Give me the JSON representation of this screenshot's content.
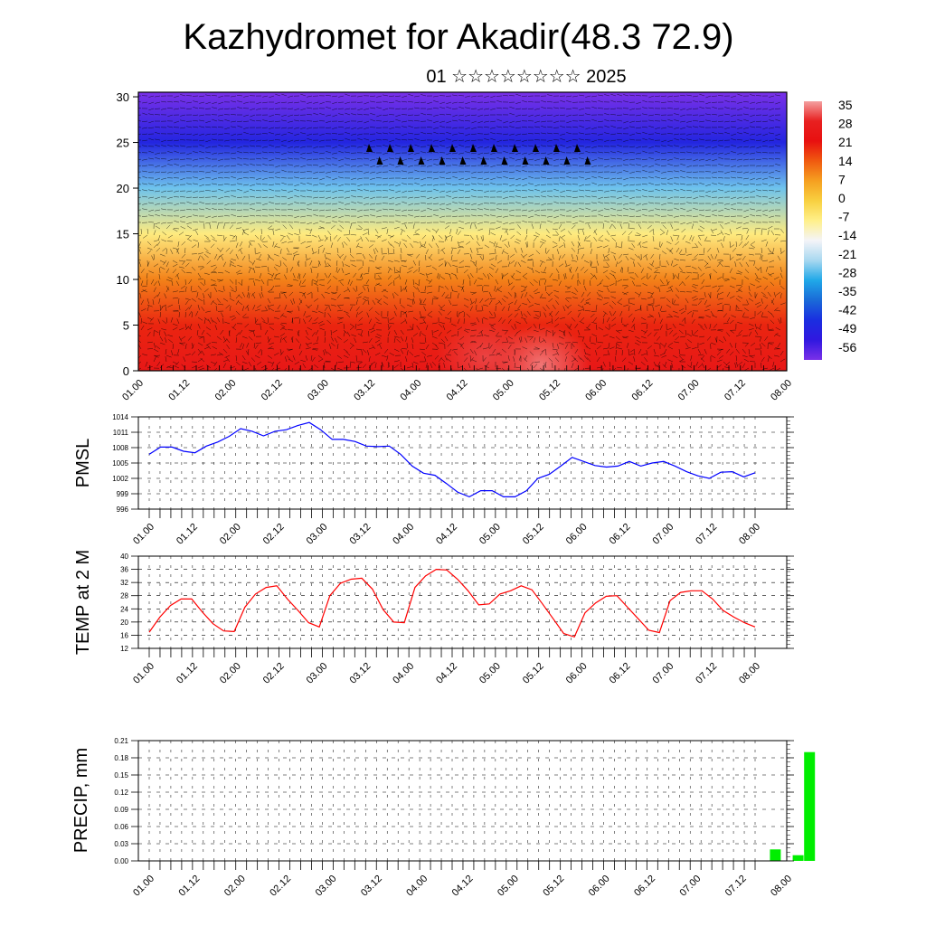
{
  "title": "Kazhydromet for Akadir(48.3 72.9)",
  "subtitle": "01 ☆☆☆☆☆☆☆☆ 2025",
  "colors": {
    "pmsl_line": "#0000ff",
    "temp_line": "#ff0000",
    "precip_bar": "#00ee00",
    "frame": "#000000",
    "wind_barb": "#000000"
  },
  "chart_data": [
    {
      "type": "heatmap",
      "name": "temperature-wind-cross-section",
      "x_tick_labels": [
        "01.00",
        "01.12",
        "02.00",
        "02.12",
        "03.00",
        "03.12",
        "04.00",
        "04.12",
        "05.00",
        "05.12",
        "06.00",
        "06.12",
        "07.00",
        "07.12",
        "08.00"
      ],
      "y_ticks": [
        0,
        5,
        10,
        15,
        20,
        25,
        30
      ],
      "ylim": [
        0,
        30.5
      ],
      "colorbar": {
        "labels": [
          "35",
          "28",
          "21",
          "14",
          "7",
          "0",
          "-7",
          "-14",
          "-21",
          "-28",
          "-35",
          "-42",
          "-49",
          "-56"
        ],
        "stops": [
          {
            "value": 35,
            "color": "#f4a0a0"
          },
          {
            "value": 28,
            "color": "#e82020"
          },
          {
            "value": 21,
            "color": "#e81010"
          },
          {
            "value": 14,
            "color": "#f05a10"
          },
          {
            "value": 7,
            "color": "#f6a020"
          },
          {
            "value": 0,
            "color": "#f8d040"
          },
          {
            "value": -7,
            "color": "#fff08a"
          },
          {
            "value": -14,
            "color": "#f4f4f8"
          },
          {
            "value": -21,
            "color": "#a8d8f0"
          },
          {
            "value": -28,
            "color": "#20a8e8"
          },
          {
            "value": -35,
            "color": "#1a6ad8"
          },
          {
            "value": -42,
            "color": "#1a2ee0"
          },
          {
            "value": -49,
            "color": "#3018e0"
          },
          {
            "value": -56,
            "color": "#7a30e8"
          }
        ]
      },
      "profile": [
        {
          "height": 0,
          "value": 24
        },
        {
          "height": 5,
          "value": 19
        },
        {
          "height": 10,
          "value": 10
        },
        {
          "height": 15,
          "value": -6
        },
        {
          "height": 20,
          "value": -24
        },
        {
          "height": 25,
          "value": -45
        },
        {
          "height": 30.5,
          "value": -56
        }
      ],
      "warm_cores": [
        {
          "x": 4.35,
          "height": 0.6,
          "value": 33
        },
        {
          "x": 3.75,
          "height": 1.5,
          "value": 30
        }
      ]
    },
    {
      "type": "line",
      "name": "pmsl",
      "ylabel": "PMSL",
      "y_ticks": [
        996,
        999,
        1002,
        1005,
        1008,
        1011,
        1014
      ],
      "ylim": [
        996,
        1014
      ],
      "x_tick_labels": [
        "01.00",
        "01.12",
        "02.00",
        "02.12",
        "03.00",
        "03.12",
        "04.00",
        "04.12",
        "05.00",
        "05.12",
        "06.00",
        "06.12",
        "07.00",
        "07.12",
        "08.00"
      ],
      "x_step_hours": 3,
      "series": [
        {
          "values": [
            1006.7,
            1008.1,
            1008.1,
            1007.3,
            1007.0,
            1008.3,
            1009.1,
            1010.2,
            1011.7,
            1011.2,
            1010.3,
            1011.2,
            1011.5,
            1012.3,
            1012.9,
            1011.5,
            1009.6,
            1009.6,
            1009.2,
            1008.3,
            1008.2,
            1008.3,
            1006.7,
            1004.4,
            1003.0,
            1002.6,
            1001.0,
            999.3,
            998.4,
            999.6,
            999.6,
            998.4,
            998.4,
            999.6,
            1002.0,
            1002.8,
            1004.4,
            1006.1,
            1005.3,
            1004.5,
            1004.2,
            1004.4,
            1005.3,
            1004.4,
            1005.0,
            1005.3,
            1004.4,
            1003.3,
            1002.5,
            1002.0,
            1003.2,
            1003.3,
            1002.3,
            1003.1
          ]
        }
      ]
    },
    {
      "type": "line",
      "name": "temp-2m",
      "ylabel": "TEMP at 2 M",
      "y_ticks": [
        12,
        16,
        20,
        24,
        28,
        32,
        36,
        40
      ],
      "ylim": [
        12,
        40
      ],
      "x_tick_labels": [
        "01.00",
        "01.12",
        "02.00",
        "02.12",
        "03.00",
        "03.12",
        "04.00",
        "04.12",
        "05.00",
        "05.12",
        "06.00",
        "06.12",
        "07.00",
        "07.12",
        "08.00"
      ],
      "x_step_hours": 3,
      "series": [
        {
          "values": [
            16.9,
            21.5,
            25.0,
            27.0,
            27.0,
            23.0,
            19.5,
            17.3,
            17.1,
            24.5,
            28.5,
            30.5,
            31.0,
            27.0,
            23.5,
            19.8,
            18.5,
            28.0,
            31.8,
            33.0,
            33.3,
            30.0,
            23.8,
            20.0,
            19.8,
            30.5,
            34.0,
            36.0,
            35.8,
            33.0,
            29.5,
            25.2,
            25.5,
            28.5,
            29.5,
            31.0,
            29.8,
            25.5,
            21.0,
            16.5,
            15.5,
            22.8,
            25.8,
            27.8,
            28.0,
            24.5,
            21.0,
            17.5,
            16.8,
            26.5,
            29.0,
            29.5,
            29.5,
            27.0,
            23.5,
            21.5,
            19.8,
            18.5
          ]
        }
      ]
    },
    {
      "type": "bar",
      "name": "precip",
      "ylabel": "PRECIP, mm",
      "y_ticks": [
        "0.00",
        "0.03",
        "0.06",
        "0.09",
        "0.12",
        "0.15",
        "0.18",
        "0.21"
      ],
      "ylim": [
        0,
        0.21
      ],
      "x_tick_labels": [
        "01.00",
        "01.12",
        "02.00",
        "02.12",
        "03.00",
        "03.12",
        "04.00",
        "04.12",
        "05.00",
        "05.12",
        "06.00",
        "06.12",
        "07.00",
        "07.12",
        "08.00"
      ],
      "bars": [
        {
          "x_hours": 165,
          "value": 0.02
        },
        {
          "x_hours": 171,
          "value": 0.01
        },
        {
          "x_hours": 174,
          "value": 0.19
        }
      ]
    }
  ]
}
